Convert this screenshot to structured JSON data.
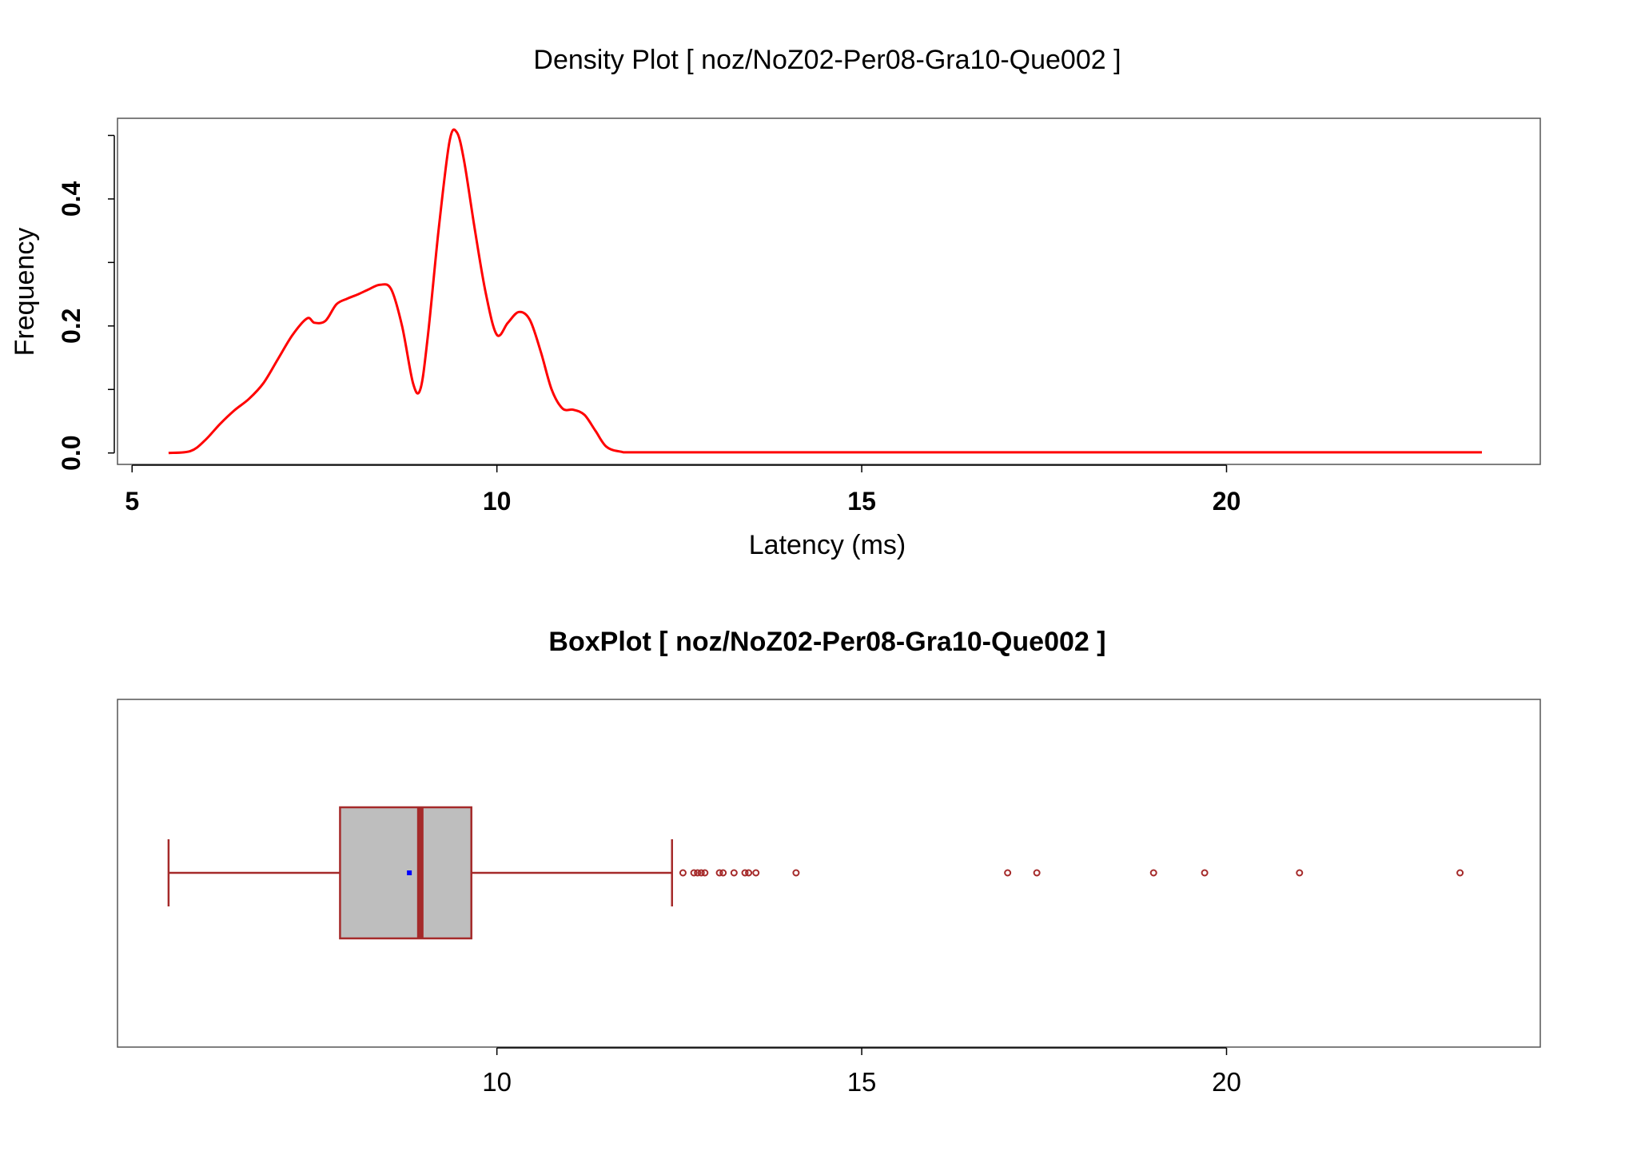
{
  "colors": {
    "density_line": "#ff0000",
    "box_border": "#a52a2a",
    "box_fill": "#bebebe",
    "mean_marker": "#0000ff",
    "frame": "#555555"
  },
  "chart_data": [
    {
      "type": "line",
      "title": "Density Plot [ noz/NoZ02-Per08-Gra10-Que002 ]",
      "xlabel": "Latency (ms)",
      "ylabel": "Frequency",
      "xlim": [
        4.8,
        24.3
      ],
      "ylim": [
        -0.018,
        0.527
      ],
      "x_ticks": [
        5,
        10,
        15,
        20
      ],
      "x_tick_labels": [
        "5",
        "10",
        "15",
        "20"
      ],
      "y_ticks": [
        0.0,
        0.2,
        0.4
      ],
      "y_tick_labels": [
        "0.0",
        "0.2",
        "0.4"
      ],
      "y_minor_ticks": [
        0.1,
        0.3,
        0.5
      ],
      "series": [
        {
          "x": [
            5.5,
            5.8,
            6.0,
            6.2,
            6.4,
            6.6,
            6.8,
            7.0,
            7.2,
            7.4,
            7.5,
            7.65,
            7.8,
            7.95,
            8.1,
            8.25,
            8.4,
            8.55,
            8.7,
            8.85,
            8.95,
            9.05,
            9.2,
            9.35,
            9.45,
            9.55,
            9.7,
            9.85,
            10.0,
            10.15,
            10.3,
            10.45,
            10.6,
            10.75,
            10.9,
            11.05,
            11.2,
            11.35,
            11.5,
            11.7,
            12.0,
            14.0,
            17.0,
            20.0,
            23.5
          ],
          "y": [
            0.0,
            0.003,
            0.02,
            0.045,
            0.067,
            0.085,
            0.11,
            0.148,
            0.186,
            0.212,
            0.205,
            0.208,
            0.234,
            0.243,
            0.25,
            0.258,
            0.265,
            0.258,
            0.2,
            0.11,
            0.1,
            0.18,
            0.35,
            0.49,
            0.505,
            0.46,
            0.35,
            0.25,
            0.186,
            0.205,
            0.222,
            0.21,
            0.16,
            0.1,
            0.07,
            0.068,
            0.06,
            0.035,
            0.01,
            0.002,
            0.001,
            0.001,
            0.001,
            0.001,
            0.001
          ]
        }
      ]
    },
    {
      "type": "box",
      "title": "BoxPlot [ noz/NoZ02-Per08-Gra10-Que002 ]",
      "xlim": [
        4.8,
        24.3
      ],
      "x_ticks": [
        10,
        15,
        20
      ],
      "x_tick_labels": [
        "10",
        "15",
        "20"
      ],
      "whisker_low": 5.5,
      "q1": 7.85,
      "median": 8.95,
      "mean": 8.8,
      "q3": 9.65,
      "whisker_high": 12.4,
      "outliers": [
        12.55,
        12.7,
        12.75,
        12.8,
        12.85,
        13.05,
        13.1,
        13.25,
        13.4,
        13.45,
        13.55,
        14.1,
        17.0,
        17.4,
        19.0,
        19.7,
        21.0,
        23.2
      ]
    }
  ]
}
